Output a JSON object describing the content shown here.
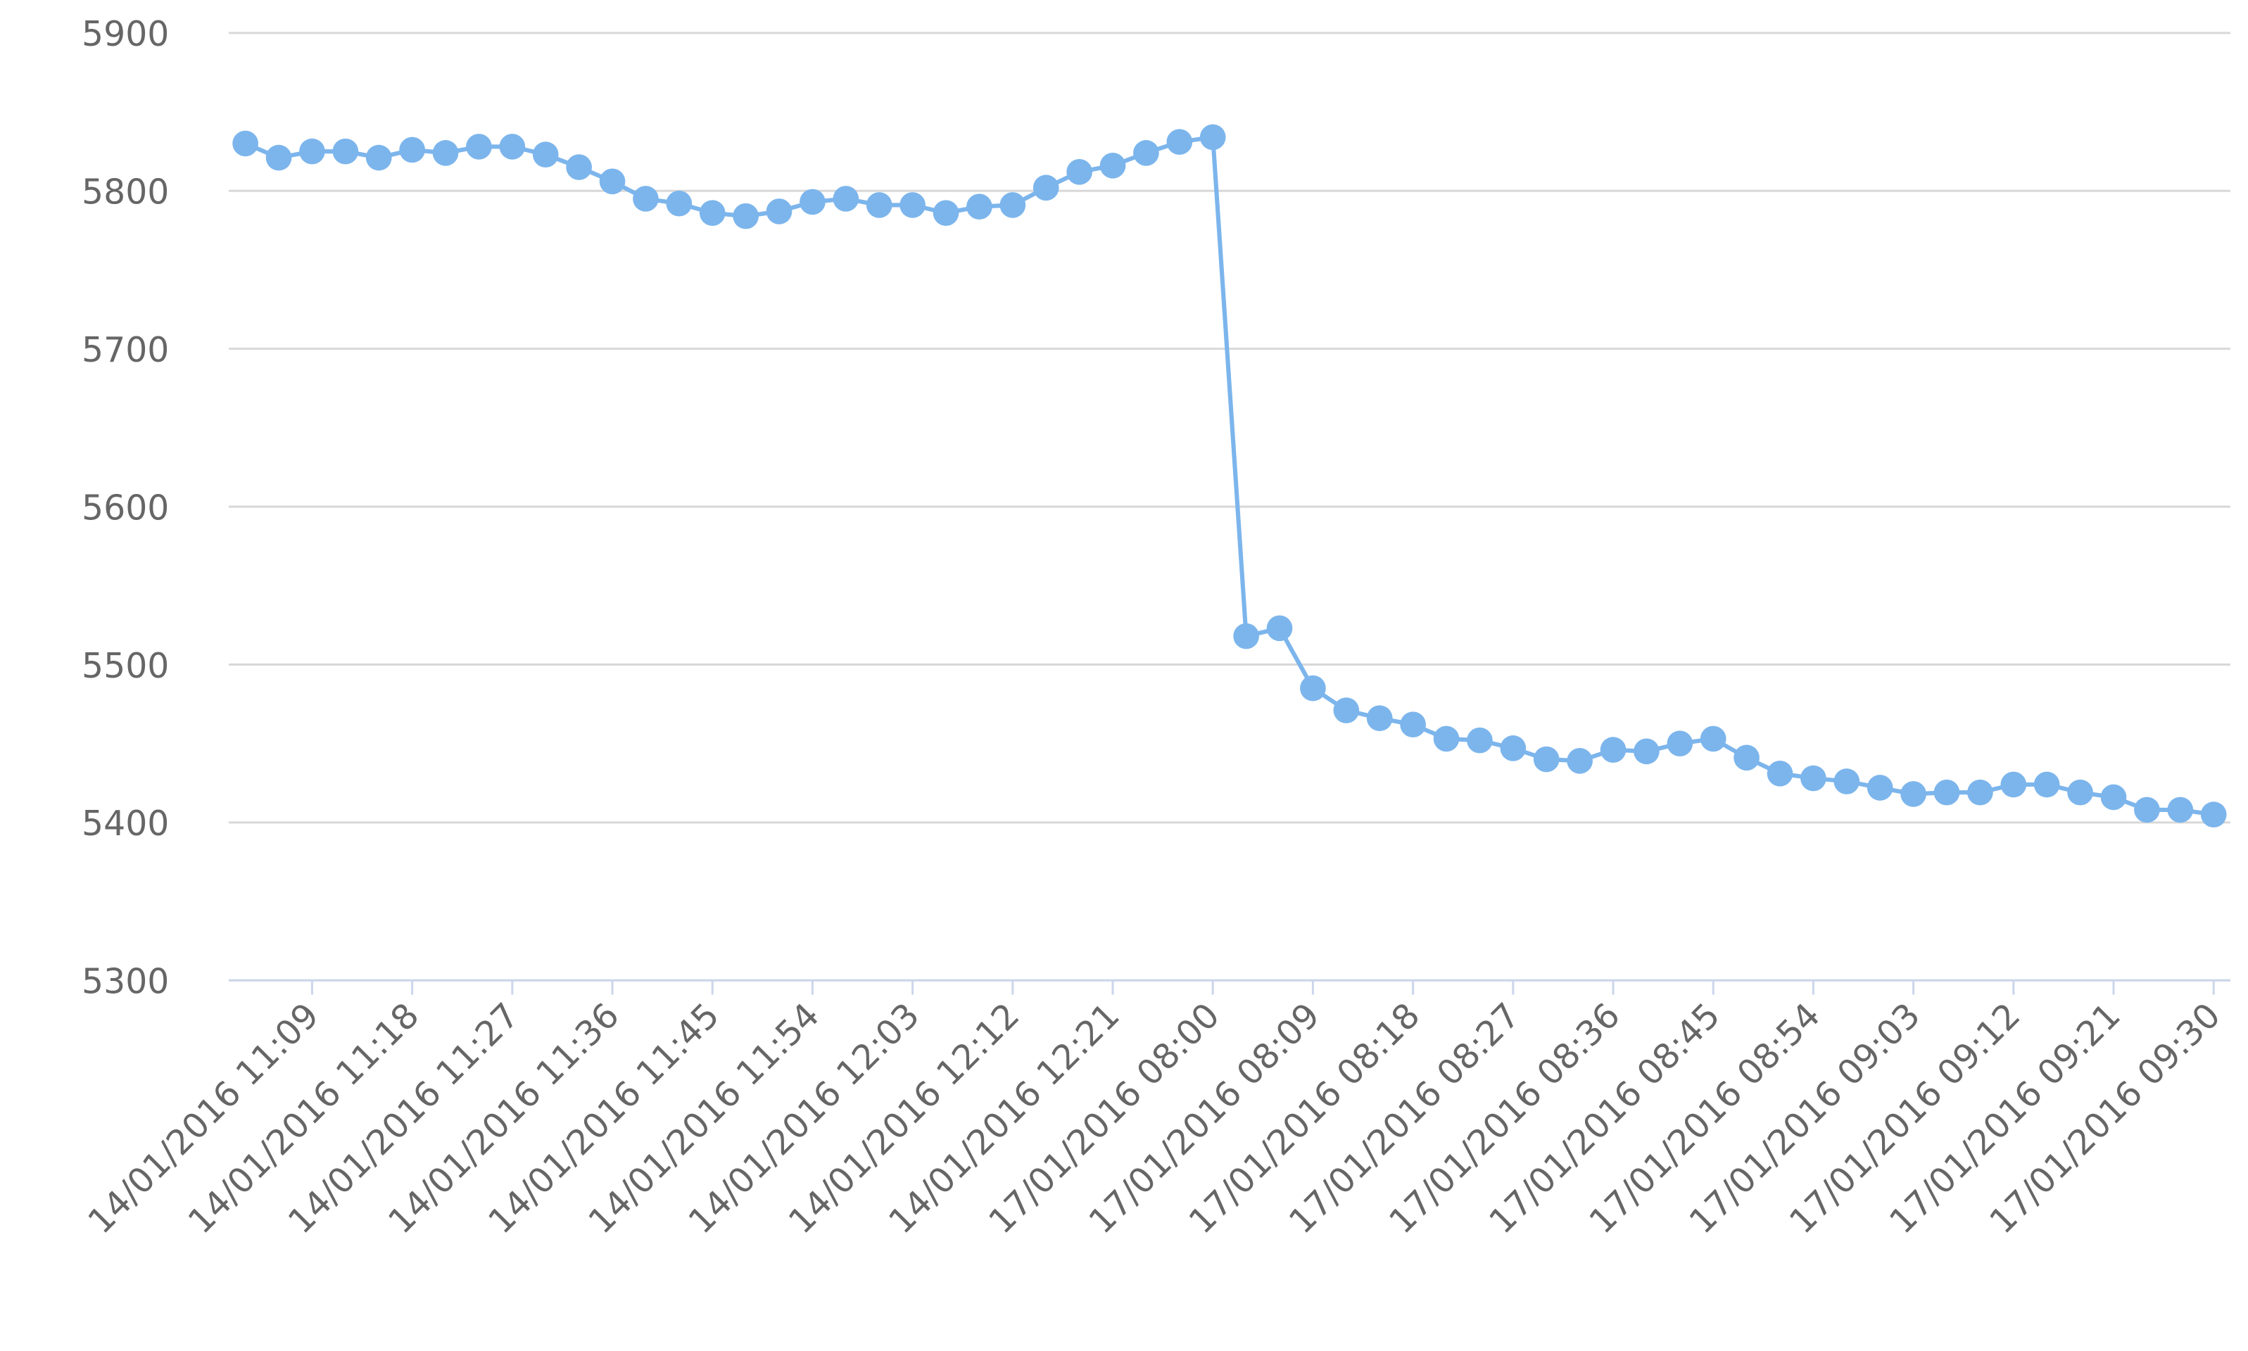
{
  "chart_data": {
    "type": "line",
    "categories": [
      null,
      null,
      "14/01/2016 11:09",
      null,
      null,
      "14/01/2016 11:18",
      null,
      null,
      "14/01/2016 11:27",
      null,
      null,
      "14/01/2016 11:36",
      null,
      null,
      "14/01/2016 11:45",
      null,
      null,
      "14/01/2016 11:54",
      null,
      null,
      "14/01/2016 12:03",
      null,
      null,
      "14/01/2016 12:12",
      null,
      null,
      "14/01/2016 12:21",
      null,
      null,
      "17/01/2016 08:00",
      null,
      null,
      "17/01/2016 08:09",
      null,
      null,
      "17/01/2016 08:18",
      null,
      null,
      "17/01/2016 08:27",
      null,
      null,
      "17/01/2016 08:36",
      null,
      null,
      "17/01/2016 08:45",
      null,
      null,
      "17/01/2016 08:54",
      null,
      null,
      "17/01/2016 09:03",
      null,
      null,
      "17/01/2016 09:12",
      null,
      null,
      "17/01/2016 09:21",
      null,
      null,
      "17/01/2016 09:30"
    ],
    "series": [
      {
        "color": "#7cb5ec",
        "values": [
          5830,
          5821,
          5825,
          5825,
          5821,
          5826,
          5824,
          5828,
          5828,
          5823,
          5815,
          5806,
          5795,
          5792,
          5786,
          5784,
          5787,
          5793,
          5795,
          5791,
          5791,
          5786,
          5790,
          5791,
          5802,
          5812,
          5816,
          5824,
          5831,
          5834,
          5518,
          5523,
          5485,
          5471,
          5466,
          5462,
          5453,
          5452,
          5447,
          5440,
          5439,
          5446,
          5445,
          5450,
          5453,
          5441,
          5431,
          5428,
          5426,
          5422,
          5418,
          5419,
          5419,
          5424,
          5424,
          5419,
          5416,
          5408,
          5408,
          5405
        ]
      }
    ],
    "ylim": [
      5300,
      5900
    ],
    "yticks": [
      5300,
      5400,
      5500,
      5600,
      5700,
      5800,
      5900
    ],
    "grid": true
  }
}
